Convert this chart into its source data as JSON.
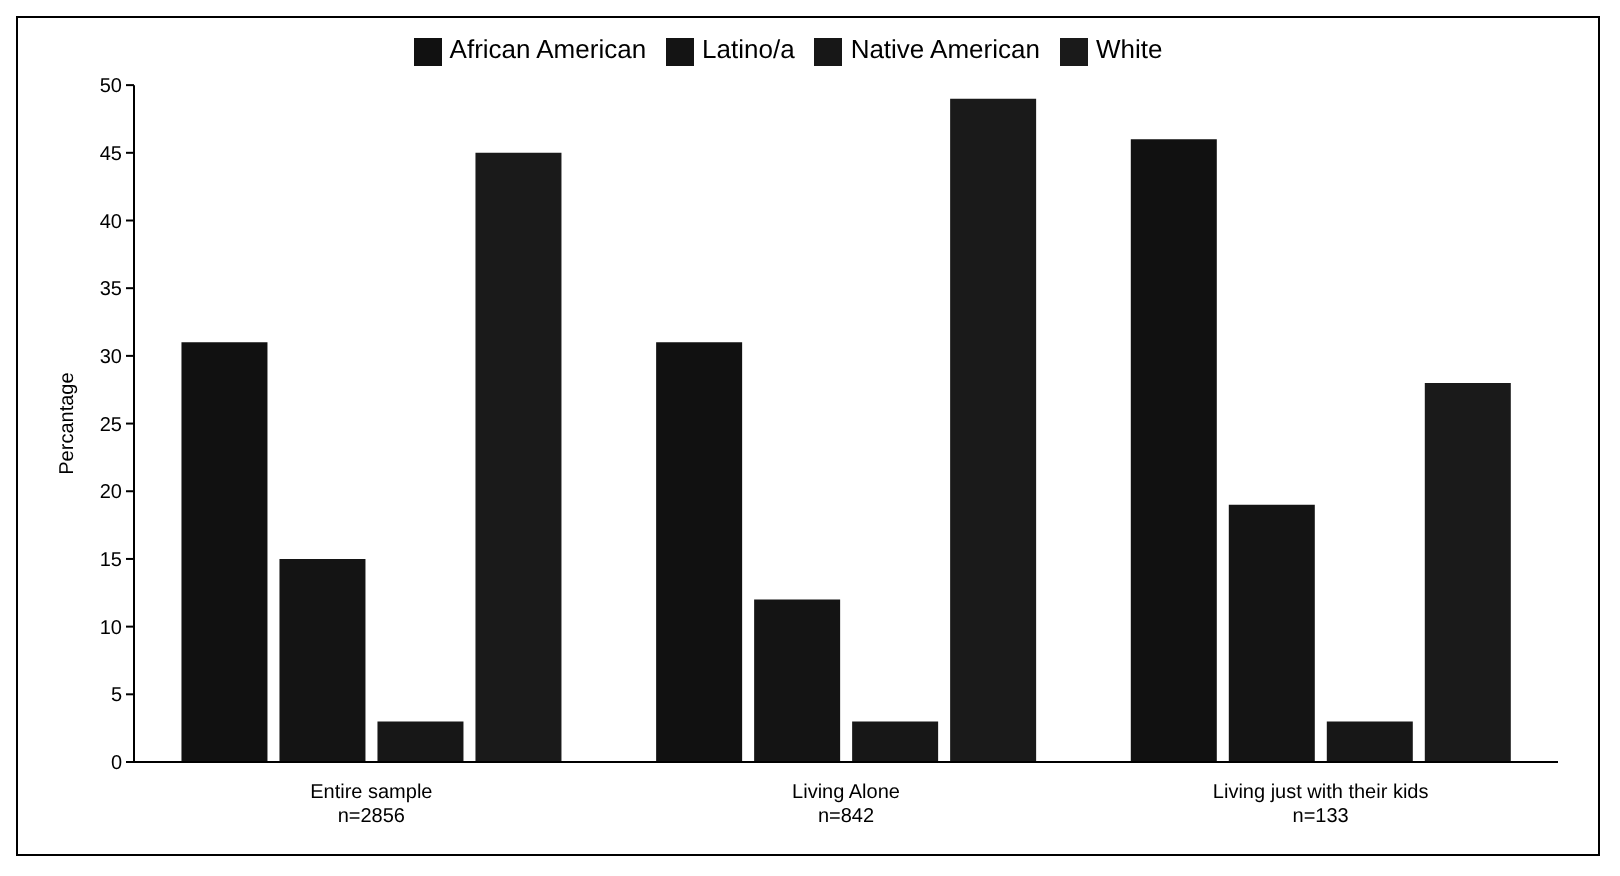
{
  "chart_data": {
    "type": "bar",
    "ylabel": "Percantage",
    "categories": [
      "Entire sample\nn=2856",
      "Living Alone\nn=842",
      "Living just with their kids\nn=133"
    ],
    "series": [
      {
        "name": "African American",
        "color": "#111111",
        "values": [
          31,
          31,
          46
        ]
      },
      {
        "name": "Latino/a",
        "color": "#141414",
        "values": [
          15,
          12,
          19
        ]
      },
      {
        "name": "Native American",
        "color": "#171717",
        "values": [
          3,
          3,
          3
        ]
      },
      {
        "name": "White",
        "color": "#1a1a1a",
        "values": [
          45,
          49,
          28
        ]
      }
    ],
    "ylim": [
      0,
      50
    ],
    "yticks": [
      0,
      5,
      10,
      15,
      20,
      25,
      30,
      35,
      40,
      45,
      50
    ],
    "grid": false,
    "legend": "top"
  }
}
